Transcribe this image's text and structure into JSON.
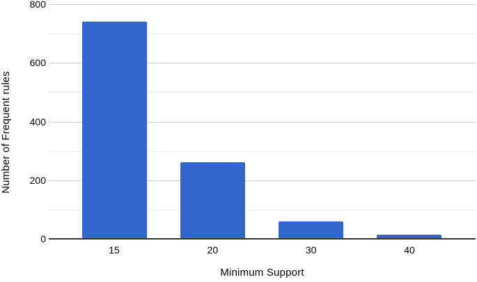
{
  "chart_data": {
    "type": "bar",
    "title": "",
    "categories": [
      "15",
      "20",
      "30",
      "40"
    ],
    "values": [
      740,
      260,
      60,
      15
    ],
    "xlabel": "Minimum Support",
    "ylabel": "Number of Frequent rules",
    "ylim": [
      0,
      800
    ],
    "y_major_ticks": [
      0,
      200,
      400,
      600,
      800
    ],
    "y_minor_gridlines": [
      100,
      300,
      500,
      700
    ],
    "grid": "horizontal",
    "legend": "none"
  },
  "colors": {
    "background": "#ffffff",
    "bar": "#3366cc",
    "axis_line": "#333333",
    "major_gridline": "#cccccc",
    "minor_gridline": "#ededed",
    "label_text": "#000000"
  }
}
